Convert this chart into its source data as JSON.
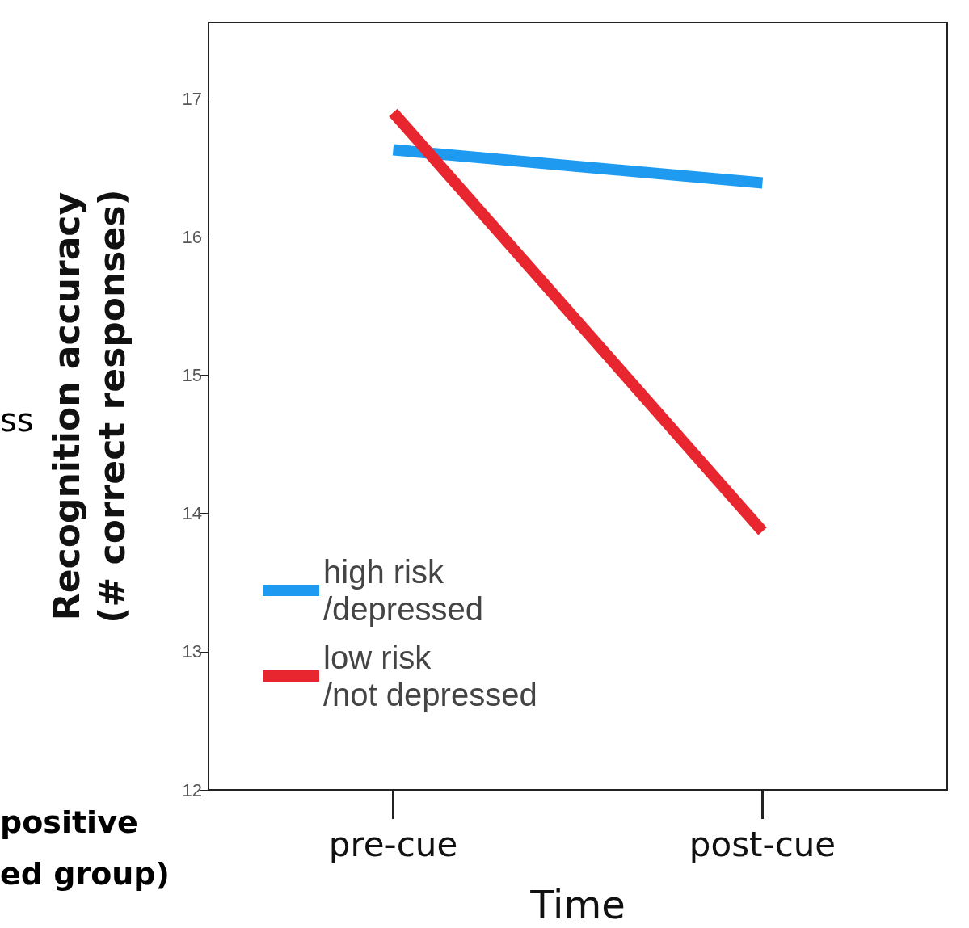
{
  "chart_data": {
    "type": "line",
    "xlabel": "Time",
    "ylabel": "Recognition accuracy\n(# correct responses)",
    "categories": [
      "pre-cue",
      "post-cue"
    ],
    "series": [
      {
        "name": "high risk\n/depressed",
        "color": "#1e9bf0",
        "values": [
          16.63,
          16.39
        ]
      },
      {
        "name": "low risk\n/not depressed",
        "color": "#e8262f",
        "values": [
          16.9,
          13.87
        ]
      }
    ],
    "ylim": [
      12,
      17.55
    ],
    "yticks": [
      12,
      13,
      14,
      15,
      16,
      17
    ],
    "grid": false,
    "legend": "bottom left",
    "marker": "none",
    "line_style": "solid",
    "annotations": [
      "ss",
      "positive",
      "ed group)"
    ]
  }
}
